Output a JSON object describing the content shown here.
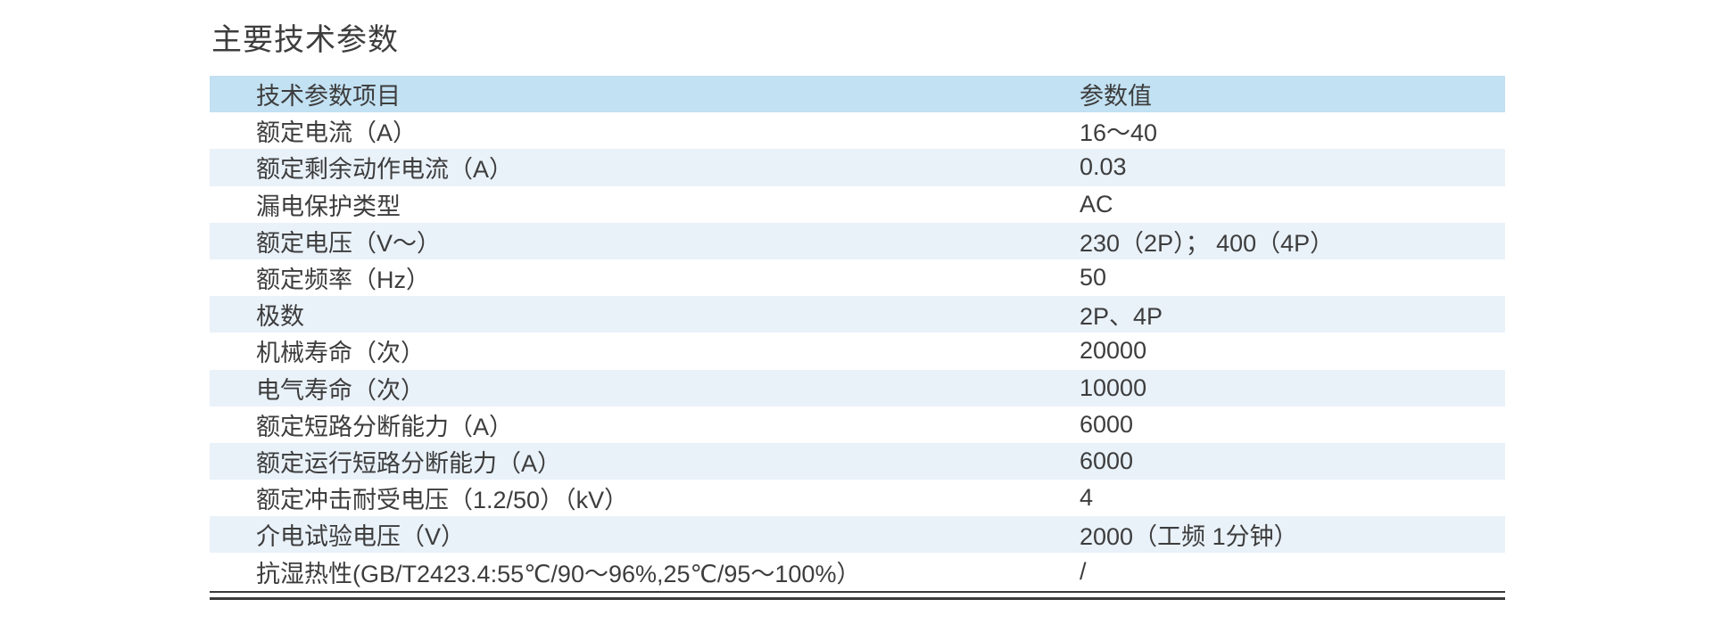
{
  "page": {
    "title": "主要技术参数"
  },
  "table": {
    "headers": [
      "技术参数项目",
      "参数值"
    ],
    "rows": [
      {
        "label": "额定电流（A）",
        "value": "16～40"
      },
      {
        "label": "额定剩余动作电流（A）",
        "value": "0.03"
      },
      {
        "label": "漏电保护类型",
        "value": "AC"
      },
      {
        "label": "额定电压（V～）",
        "value": "230（2P）； 400（4P）"
      },
      {
        "label": "额定频率（Hz）",
        "value": "50"
      },
      {
        "label": "极数",
        "value": "2P、4P"
      },
      {
        "label": "机械寿命（次）",
        "value": "20000"
      },
      {
        "label": "电气寿命（次）",
        "value": "10000"
      },
      {
        "label": "额定短路分断能力（A）",
        "value": "6000"
      },
      {
        "label": "额定运行短路分断能力（A）",
        "value": "6000"
      },
      {
        "label": "额定冲击耐受电压（1.2/50）（kV）",
        "value": "4"
      },
      {
        "label": "介电试验电压（V）",
        "value": "2000（工频 1分钟）"
      },
      {
        "label": "抗湿热性(GB/T2423.4:55℃/90～96%,25℃/95～100%）",
        "value": "/"
      }
    ]
  },
  "colors": {
    "header_bg": "#c2e1f2",
    "alt_row_bg": "#e9f1f9",
    "text": "#3d3d3d",
    "rule": "#3b3b3b"
  }
}
